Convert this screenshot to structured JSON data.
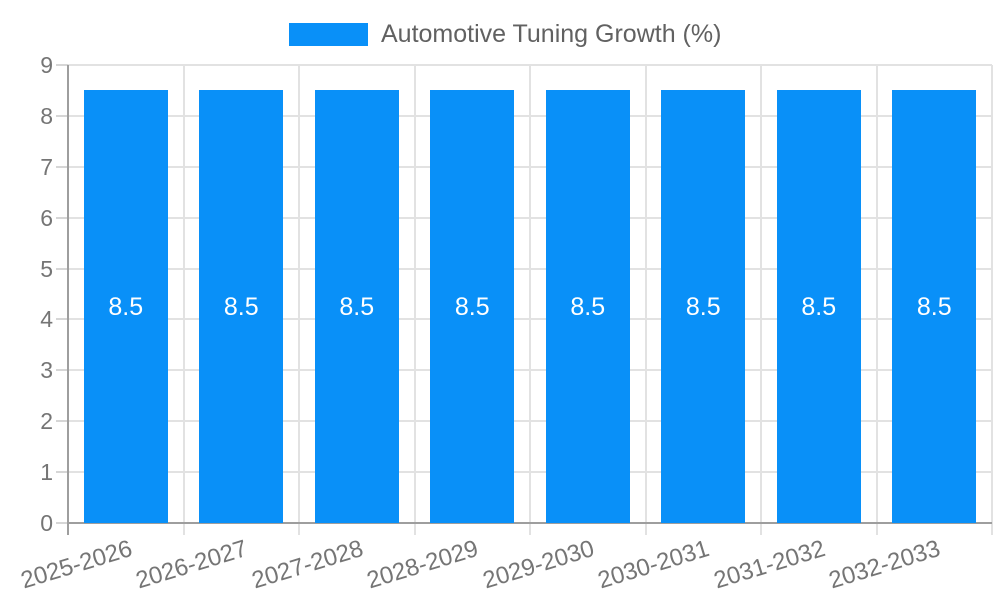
{
  "chart_data": {
    "type": "bar",
    "title": "",
    "legend_label": "Automotive Tuning Growth (%)",
    "legend_position": "top",
    "categories": [
      "2025-2026",
      "2026-2027",
      "2027-2028",
      "2028-2029",
      "2029-2030",
      "2030-2031",
      "2031-2032",
      "2032-2033"
    ],
    "values": [
      8.5,
      8.5,
      8.5,
      8.5,
      8.5,
      8.5,
      8.5,
      8.5
    ],
    "value_labels": [
      "8.5",
      "8.5",
      "8.5",
      "8.5",
      "8.5",
      "8.5",
      "8.5",
      "8.5"
    ],
    "xlabel": "",
    "ylabel": "",
    "ylim": [
      0,
      9
    ],
    "yticks": [
      0,
      1,
      2,
      3,
      4,
      5,
      6,
      7,
      8,
      9
    ],
    "grid": true,
    "x_label_rotation_deg": -17,
    "colors": {
      "bar": "#0990f8",
      "value_label": "#ffffff",
      "axis_line": "#9e9e9e",
      "gridline": "#e2e2e2",
      "tick": "#d6d6d6",
      "axis_label": "#757575",
      "legend_text": "#616161",
      "background": "#ffffff"
    }
  }
}
